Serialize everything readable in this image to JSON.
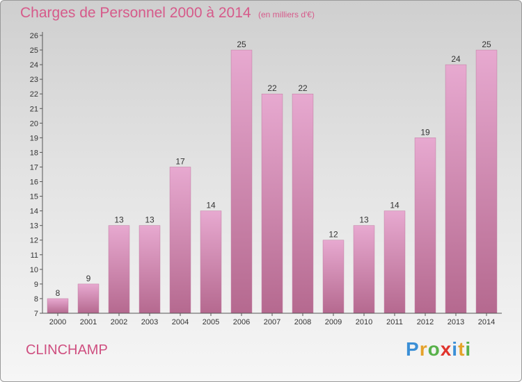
{
  "header": {
    "title": "Charges de Personnel 2000 à 2014",
    "subtitle": "(en milliers d'€)"
  },
  "footer": {
    "place": "CLINCHAMP",
    "logo": {
      "letters": [
        {
          "char": "P",
          "color": "#3b8fd6"
        },
        {
          "char": "r",
          "color": "#e5a22a"
        },
        {
          "char": "o",
          "color": "#58b14a"
        },
        {
          "char": "x",
          "color": "#e0342d"
        },
        {
          "char": "i",
          "color": "#3b8fd6"
        },
        {
          "char": "t",
          "color": "#e5a22a"
        },
        {
          "char": "i",
          "color": "#58b14a"
        }
      ]
    }
  },
  "chart_data": {
    "type": "bar",
    "title": "Charges de Personnel 2000 à 2014",
    "subtitle": "(en milliers d'€)",
    "xlabel": "",
    "ylabel": "",
    "categories": [
      "2000",
      "2001",
      "2002",
      "2003",
      "2004",
      "2005",
      "2006",
      "2007",
      "2008",
      "2009",
      "2010",
      "2011",
      "2012",
      "2013",
      "2014"
    ],
    "values": [
      8,
      9,
      13,
      13,
      17,
      14,
      25,
      22,
      22,
      12,
      13,
      14,
      19,
      24,
      25
    ],
    "ylim": [
      7,
      26
    ],
    "yticks": [
      7,
      8,
      9,
      10,
      11,
      12,
      13,
      14,
      15,
      16,
      17,
      18,
      19,
      20,
      21,
      22,
      23,
      24,
      25,
      26
    ],
    "grid": false,
    "data_labels": true,
    "colors": {
      "bar_light": "#e7a9d0",
      "bar_dark": "#b5698f",
      "axis": "#555555"
    }
  }
}
